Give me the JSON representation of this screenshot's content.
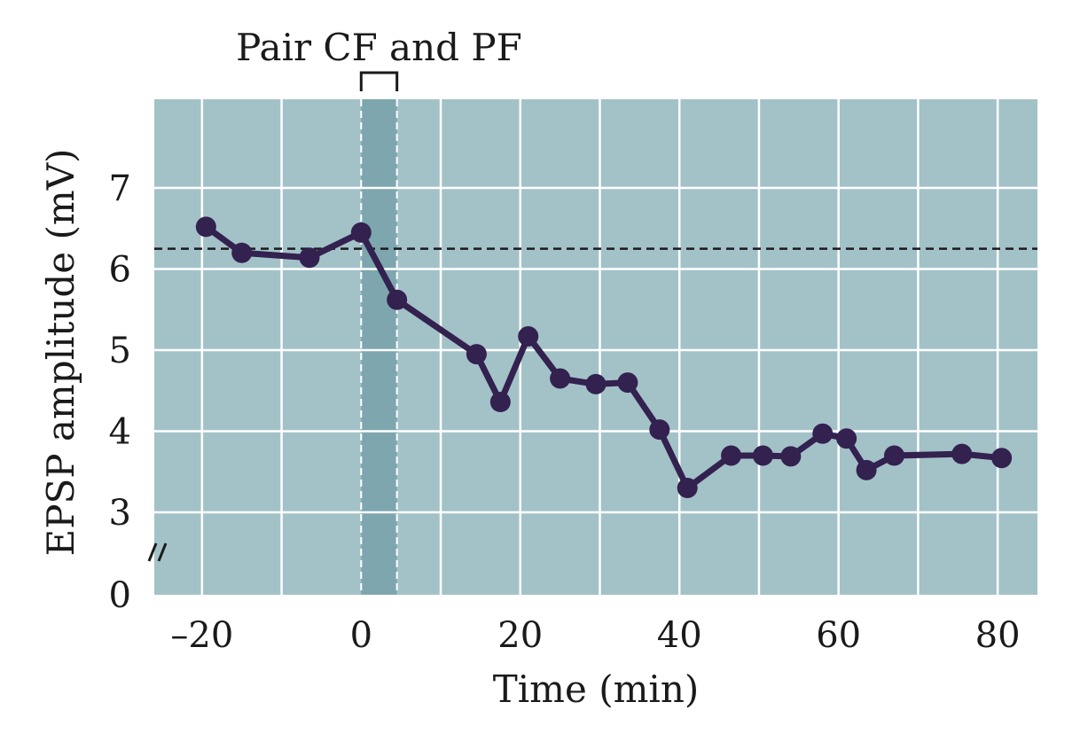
{
  "chart_data": {
    "type": "line",
    "title": "",
    "xlabel": "Time (min)",
    "ylabel": "EPSP amplitude (mV)",
    "xlim": [
      -26,
      85
    ],
    "x_ticks": [
      -20,
      0,
      20,
      40,
      60,
      80
    ],
    "x_tick_labels": [
      "–20",
      "0",
      "20",
      "40",
      "60",
      "80"
    ],
    "y_ticks": [
      0,
      3,
      4,
      5,
      6,
      7
    ],
    "y_tick_labels": [
      "0",
      "3",
      "4",
      "5",
      "6",
      "7"
    ],
    "y_axis_break": true,
    "grid": true,
    "baseline": 6.25,
    "pairing_window": {
      "label": "Pair CF and PF",
      "start": 0,
      "end": 4.5
    },
    "colors": {
      "plot_background": "#a3c2c8",
      "pairing_band": "#7ea6ae",
      "grid": "#ffffff",
      "series": "#33214f",
      "baseline": "#1a1a1a"
    },
    "series": [
      {
        "x": [
          -19.5,
          -15,
          -6.5,
          0,
          4.5,
          14.5,
          17.5,
          21,
          25,
          29.5,
          33.5,
          37.5,
          41,
          46.5,
          50.5,
          54,
          58,
          61,
          63.5,
          67,
          75.5,
          80.5
        ],
        "y": [
          6.52,
          6.2,
          6.14,
          6.45,
          5.62,
          4.95,
          4.36,
          5.17,
          4.65,
          4.58,
          4.6,
          4.02,
          3.3,
          3.7,
          3.7,
          3.69,
          3.97,
          3.91,
          3.52,
          3.7,
          3.72,
          3.67
        ]
      }
    ]
  }
}
